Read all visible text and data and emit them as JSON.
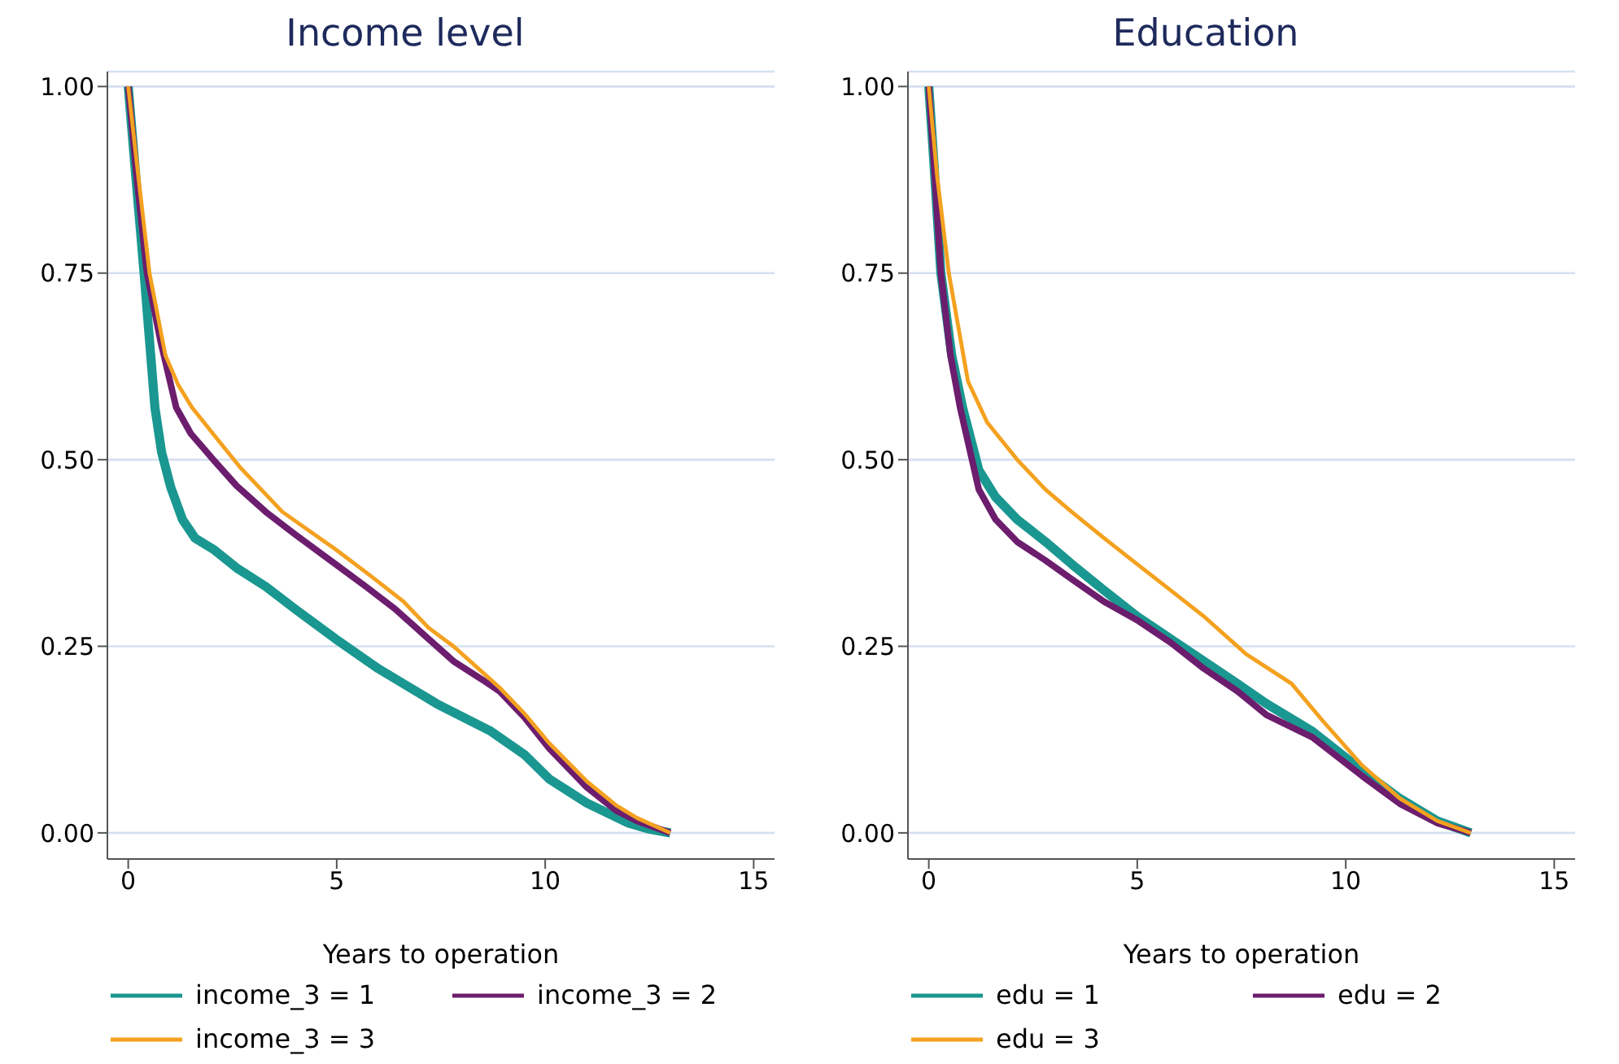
{
  "chart_data": [
    {
      "type": "line",
      "title": "Income level",
      "xlabel": "Years to operation",
      "xlim": [
        -0.5,
        15.5
      ],
      "xticks": [
        0,
        5,
        10,
        15
      ],
      "ylim": [
        -0.035,
        1.02
      ],
      "yticks": [
        {
          "value": 0,
          "label": "0.00"
        },
        {
          "value": 0.25,
          "label": "0.25"
        },
        {
          "value": 0.5,
          "label": "0.50"
        },
        {
          "value": 0.75,
          "label": "0.75"
        },
        {
          "value": 1,
          "label": "1.00"
        }
      ],
      "grid": "y",
      "legend": "bottom",
      "line_style": "solid",
      "marker": "none",
      "series": [
        {
          "name": "income_3 = 1",
          "color": "#1a9790",
          "x": [
            0,
            0.15,
            0.38,
            0.64,
            0.8,
            1.02,
            1.3,
            1.6,
            2.04,
            2.6,
            3.3,
            4.0,
            4.97,
            6.0,
            7.4,
            8.7,
            9.5,
            10.1,
            11.0,
            12.0,
            12.5,
            13.0
          ],
          "values": [
            1,
            0.9,
            0.75,
            0.57,
            0.51,
            0.463,
            0.42,
            0.395,
            0.38,
            0.355,
            0.33,
            0.3,
            0.26,
            0.22,
            0.173,
            0.136,
            0.105,
            0.072,
            0.04,
            0.013,
            0.005,
            0
          ]
        },
        {
          "name": "income_3 = 2",
          "color": "#6c1d6d",
          "x": [
            0,
            0.2,
            0.45,
            0.77,
            1.15,
            1.5,
            2.04,
            2.6,
            3.3,
            4.0,
            4.97,
            5.7,
            6.4,
            7.1,
            7.8,
            8.5,
            8.9,
            9.5,
            10.1,
            11.0,
            11.7,
            12.2,
            13.0
          ],
          "values": [
            1,
            0.88,
            0.75,
            0.66,
            0.57,
            0.535,
            0.5,
            0.465,
            0.43,
            0.4,
            0.36,
            0.33,
            0.3,
            0.265,
            0.23,
            0.205,
            0.19,
            0.155,
            0.113,
            0.061,
            0.03,
            0.016,
            0
          ]
        },
        {
          "name": "income_3 = 3",
          "color": "#f4a11f",
          "x": [
            0,
            0.2,
            0.51,
            0.89,
            1.2,
            1.53,
            2.1,
            2.68,
            3.7,
            4.97,
            5.8,
            6.6,
            7.2,
            7.8,
            8.5,
            8.9,
            9.5,
            10.1,
            11.0,
            11.7,
            12.2,
            13.0
          ],
          "values": [
            1,
            0.9,
            0.75,
            0.64,
            0.6,
            0.57,
            0.53,
            0.49,
            0.43,
            0.38,
            0.345,
            0.31,
            0.275,
            0.25,
            0.215,
            0.195,
            0.16,
            0.12,
            0.069,
            0.037,
            0.02,
            0
          ]
        }
      ]
    },
    {
      "type": "line",
      "title": "Education",
      "xlabel": "Years to operation",
      "xlim": [
        -0.5,
        15.5
      ],
      "xticks": [
        0,
        5,
        10,
        15
      ],
      "ylim": [
        -0.035,
        1.02
      ],
      "yticks": [
        {
          "value": 0,
          "label": "0.00"
        },
        {
          "value": 0.25,
          "label": "0.25"
        },
        {
          "value": 0.5,
          "label": "0.50"
        },
        {
          "value": 0.75,
          "label": "0.75"
        },
        {
          "value": 1,
          "label": "1.00"
        }
      ],
      "grid": "y",
      "legend": "bottom",
      "line_style": "solid",
      "marker": "none",
      "series": [
        {
          "name": "edu = 1",
          "color": "#1a9790",
          "x": [
            0,
            0.12,
            0.29,
            0.55,
            0.81,
            1.2,
            1.6,
            2.12,
            2.8,
            3.43,
            4.2,
            5.0,
            5.8,
            6.6,
            7.4,
            8.1,
            9.2,
            10.4,
            11.3,
            12.2,
            13.0
          ],
          "values": [
            1,
            0.9,
            0.75,
            0.64,
            0.57,
            0.486,
            0.45,
            0.42,
            0.39,
            0.36,
            0.325,
            0.29,
            0.26,
            0.23,
            0.2,
            0.173,
            0.136,
            0.083,
            0.046,
            0.016,
            0
          ]
        },
        {
          "name": "edu = 2",
          "color": "#6c1d6d",
          "x": [
            0,
            0.12,
            0.29,
            0.52,
            0.75,
            1.2,
            1.6,
            2.12,
            2.8,
            3.43,
            4.2,
            5.0,
            5.8,
            6.6,
            7.4,
            8.1,
            9.2,
            10.4,
            11.3,
            12.2,
            13.0
          ],
          "values": [
            1,
            0.9,
            0.75,
            0.64,
            0.57,
            0.46,
            0.42,
            0.39,
            0.365,
            0.34,
            0.31,
            0.285,
            0.255,
            0.22,
            0.19,
            0.158,
            0.128,
            0.076,
            0.039,
            0.013,
            0
          ]
        },
        {
          "name": "edu = 3",
          "color": "#f4a11f",
          "x": [
            0,
            0.2,
            0.48,
            0.94,
            1.4,
            2.12,
            2.8,
            3.43,
            4.2,
            5.0,
            5.8,
            6.6,
            7.6,
            8.7,
            9.45,
            10.4,
            11.3,
            12.2,
            13.0
          ],
          "values": [
            1,
            0.88,
            0.75,
            0.605,
            0.55,
            0.5,
            0.46,
            0.43,
            0.395,
            0.36,
            0.325,
            0.29,
            0.24,
            0.2,
            0.15,
            0.09,
            0.046,
            0.016,
            0
          ]
        }
      ]
    }
  ]
}
